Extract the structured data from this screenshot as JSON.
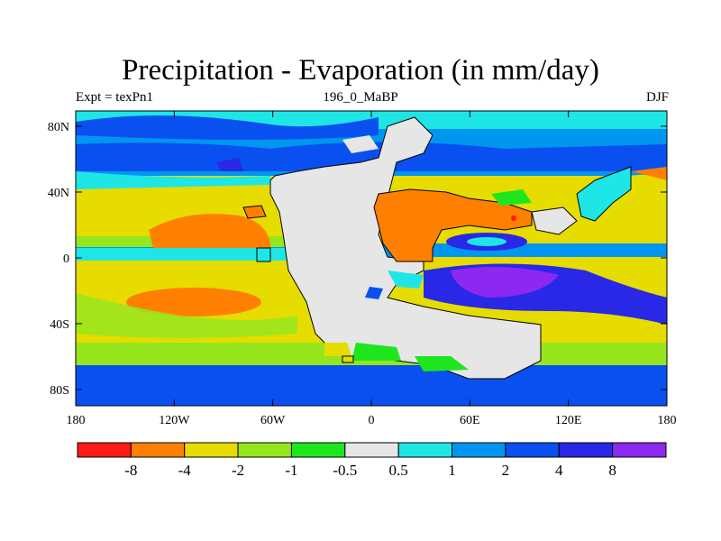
{
  "title": "Precipitation - Evaporation (in mm/day)",
  "left_string": "Expt = texPn1",
  "center_string": "196_0_MaBP",
  "right_string": "DJF",
  "lat_ticks": [
    "80N",
    "40N",
    "0",
    "40S",
    "80S"
  ],
  "lon_ticks": [
    "180",
    "120W",
    "60W",
    "0",
    "60E",
    "120E",
    "180"
  ],
  "colorbar": {
    "colors": [
      "#ff1a1a",
      "#ff8000",
      "#e6dc00",
      "#96e61e",
      "#1ee61e",
      "#e6e6e6",
      "#1ee6e6",
      "#0096f0",
      "#0a50f0",
      "#2828e6",
      "#8c28f0"
    ],
    "labels": [
      "-8",
      "-4",
      "-2",
      "-1",
      "-0.5",
      "0.5",
      "1",
      "2",
      "4",
      "8"
    ]
  },
  "colors": {
    "land": "#e6e6e6",
    "coast": "#000000"
  }
}
